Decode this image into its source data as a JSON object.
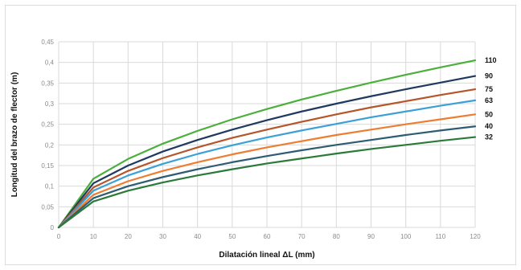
{
  "chart_data": {
    "type": "line",
    "xlabel": "Dilatación lineal ΔL (mm)",
    "ylabel": "Longitud del brazo de flector (m)",
    "xlim": [
      0,
      120
    ],
    "ylim": [
      0,
      0.45
    ],
    "x_ticks": [
      "0",
      "10",
      "20",
      "30",
      "40",
      "50",
      "60",
      "70",
      "80",
      "90",
      "100",
      "110",
      "120"
    ],
    "y_ticks": [
      "0",
      "0,05",
      "0,1",
      "0,15",
      "0,2",
      "0,25",
      "0,3",
      "0,35",
      "0,4",
      "0,45"
    ],
    "grid": true,
    "x": [
      0,
      10,
      20,
      30,
      40,
      50,
      60,
      70,
      80,
      90,
      100,
      110,
      120
    ],
    "series": [
      {
        "name": "110",
        "color": "#4caf3c",
        "values": [
          0,
          0.118,
          0.166,
          0.203,
          0.234,
          0.262,
          0.287,
          0.31,
          0.331,
          0.351,
          0.37,
          0.388,
          0.405
        ]
      },
      {
        "name": "90",
        "color": "#1f3a5f",
        "values": [
          0,
          0.107,
          0.15,
          0.184,
          0.212,
          0.237,
          0.26,
          0.281,
          0.3,
          0.318,
          0.335,
          0.351,
          0.367
        ]
      },
      {
        "name": "75",
        "color": "#b5552a",
        "values": [
          0,
          0.097,
          0.137,
          0.168,
          0.194,
          0.217,
          0.237,
          0.256,
          0.274,
          0.291,
          0.306,
          0.321,
          0.335
        ]
      },
      {
        "name": "63",
        "color": "#3aa0d8",
        "values": [
          0,
          0.089,
          0.126,
          0.154,
          0.178,
          0.199,
          0.218,
          0.235,
          0.251,
          0.267,
          0.281,
          0.295,
          0.308
        ]
      },
      {
        "name": "50",
        "color": "#ed7d31",
        "values": [
          0,
          0.079,
          0.112,
          0.137,
          0.158,
          0.177,
          0.194,
          0.209,
          0.224,
          0.237,
          0.25,
          0.262,
          0.274
        ]
      },
      {
        "name": "40",
        "color": "#2e5c73",
        "values": [
          0,
          0.071,
          0.1,
          0.122,
          0.141,
          0.158,
          0.173,
          0.187,
          0.2,
          0.212,
          0.224,
          0.235,
          0.245
        ]
      },
      {
        "name": "32",
        "color": "#2a7a3a",
        "values": [
          0,
          0.063,
          0.089,
          0.109,
          0.126,
          0.141,
          0.155,
          0.167,
          0.179,
          0.19,
          0.2,
          0.21,
          0.219
        ]
      }
    ]
  }
}
